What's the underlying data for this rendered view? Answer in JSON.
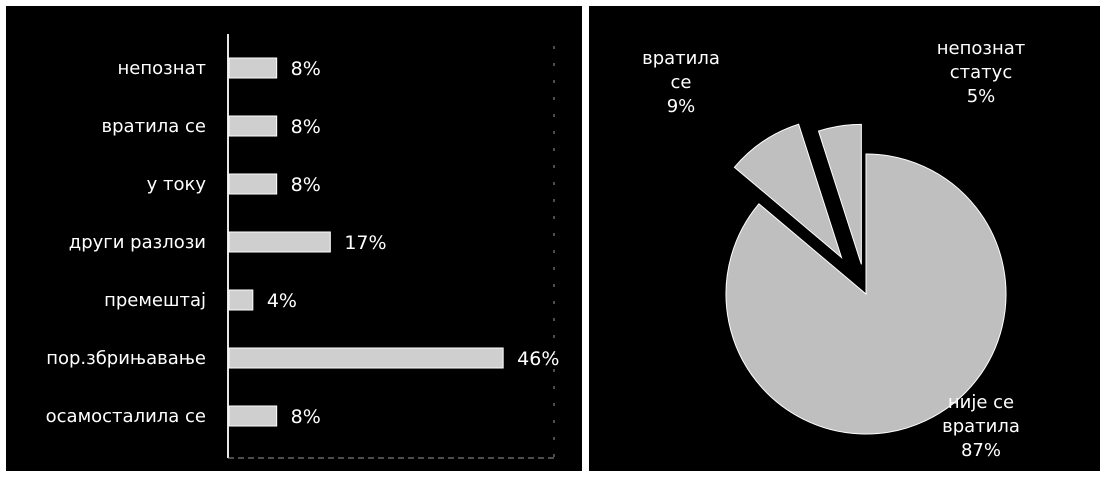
{
  "chart_data": [
    {
      "type": "bar",
      "orientation": "horizontal",
      "categories": [
        "непознат",
        "вратила се",
        "у току",
        "други разлози",
        "премештај",
        "пор.збрињавање",
        "осамосталила се"
      ],
      "values": [
        8,
        8,
        8,
        17,
        4,
        46,
        8
      ],
      "data_labels": [
        "8%",
        "8%",
        "8%",
        "17%",
        "4%",
        "46%",
        "8%"
      ],
      "xlim": [
        0,
        50
      ],
      "grid": false,
      "legend": "none",
      "colors": {
        "background": "#000000",
        "bar": "#cfcfcf",
        "text": "#ffffff"
      }
    },
    {
      "type": "pie",
      "slices": [
        {
          "label_lines": [
            "није се",
            "вратила",
            "87%"
          ],
          "value": 87
        },
        {
          "label_lines": [
            "вратила",
            "се",
            "9%"
          ],
          "value": 9
        },
        {
          "label_lines": [
            "непознат",
            "статус",
            "5%"
          ],
          "value": 5
        }
      ],
      "exploded": true,
      "legend": "none",
      "colors": {
        "background": "#000000",
        "slice": "#bfbfbf",
        "text": "#ffffff"
      }
    }
  ]
}
